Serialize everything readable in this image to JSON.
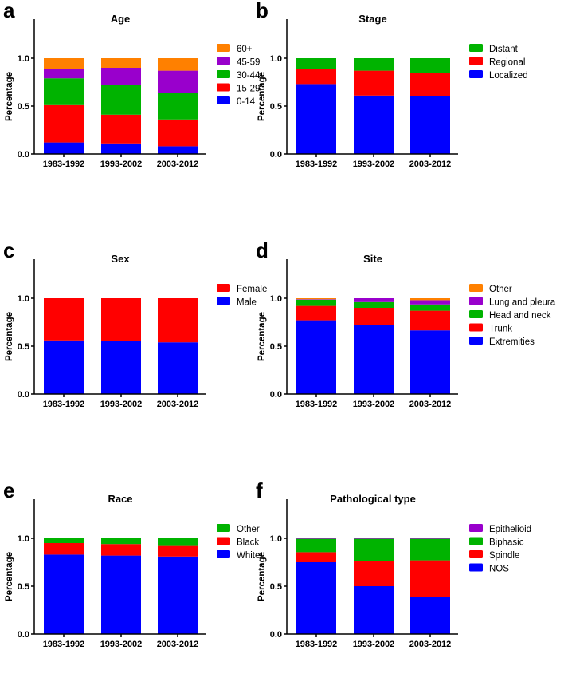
{
  "chart_data": [
    {
      "panel": "a",
      "type": "bar",
      "stacked": true,
      "title": "Age",
      "xlabel": "",
      "ylabel": "Percentage",
      "ylim": [
        0,
        1.2
      ],
      "yticks": [
        "0.0",
        "0.5",
        "1.0"
      ],
      "categories": [
        "1983-1992",
        "1993-2002",
        "2003-2012"
      ],
      "legend_position": "right",
      "series": [
        {
          "name": "0-14",
          "color": "#0000FF",
          "values": [
            0.12,
            0.11,
            0.08
          ]
        },
        {
          "name": "15-29",
          "color": "#FF0000",
          "values": [
            0.39,
            0.3,
            0.28
          ]
        },
        {
          "name": "30-44",
          "color": "#00B300",
          "values": [
            0.28,
            0.31,
            0.28
          ]
        },
        {
          "name": "45-59",
          "color": "#9900CC",
          "values": [
            0.1,
            0.18,
            0.23
          ]
        },
        {
          "name": "60+",
          "color": "#FF8000",
          "values": [
            0.11,
            0.1,
            0.13
          ]
        }
      ]
    },
    {
      "panel": "b",
      "type": "bar",
      "stacked": true,
      "title": "Stage",
      "xlabel": "",
      "ylabel": "Percentage",
      "ylim": [
        0,
        1.2
      ],
      "yticks": [
        "0.0",
        "0.5",
        "1.0"
      ],
      "categories": [
        "1983-1992",
        "1993-2002",
        "2003-2012"
      ],
      "legend_position": "right",
      "series": [
        {
          "name": "Localized",
          "color": "#0000FF",
          "values": [
            0.73,
            0.61,
            0.6
          ]
        },
        {
          "name": "Regional",
          "color": "#FF0000",
          "values": [
            0.16,
            0.26,
            0.25
          ]
        },
        {
          "name": "Distant",
          "color": "#00B300",
          "values": [
            0.11,
            0.13,
            0.15
          ]
        }
      ]
    },
    {
      "panel": "c",
      "type": "bar",
      "stacked": true,
      "title": "Sex",
      "xlabel": "",
      "ylabel": "Percentage",
      "ylim": [
        0,
        1.2
      ],
      "yticks": [
        "0.0",
        "0.5",
        "1.0"
      ],
      "categories": [
        "1983-1992",
        "1993-2002",
        "2003-2012"
      ],
      "legend_position": "right",
      "series": [
        {
          "name": "Male",
          "color": "#0000FF",
          "values": [
            0.56,
            0.55,
            0.54
          ]
        },
        {
          "name": "Female",
          "color": "#FF0000",
          "values": [
            0.44,
            0.45,
            0.46
          ]
        }
      ]
    },
    {
      "panel": "d",
      "type": "bar",
      "stacked": true,
      "title": "Site",
      "xlabel": "",
      "ylabel": "Percentage",
      "ylim": [
        0,
        1.2
      ],
      "yticks": [
        "0.0",
        "0.5",
        "1.0"
      ],
      "categories": [
        "1983-1992",
        "1993-2002",
        "2003-2012"
      ],
      "legend_position": "right",
      "series": [
        {
          "name": "Extremities",
          "color": "#0000FF",
          "values": [
            0.77,
            0.72,
            0.665
          ]
        },
        {
          "name": "Trunk",
          "color": "#FF0000",
          "values": [
            0.15,
            0.18,
            0.205
          ]
        },
        {
          "name": "Head and neck",
          "color": "#00B300",
          "values": [
            0.065,
            0.06,
            0.065
          ]
        },
        {
          "name": "Lung and pleura",
          "color": "#9900CC",
          "values": [
            0.005,
            0.04,
            0.045
          ]
        },
        {
          "name": "Other",
          "color": "#FF8000",
          "values": [
            0.01,
            0.0,
            0.02
          ]
        }
      ]
    },
    {
      "panel": "e",
      "type": "bar",
      "stacked": true,
      "title": "Race",
      "xlabel": "",
      "ylabel": "Percentage",
      "ylim": [
        0,
        1.2
      ],
      "yticks": [
        "0.0",
        "0.5",
        "1.0"
      ],
      "categories": [
        "1983-1992",
        "1993-2002",
        "2003-2012"
      ],
      "legend_position": "right",
      "series": [
        {
          "name": "White",
          "color": "#0000FF",
          "values": [
            0.83,
            0.82,
            0.81
          ]
        },
        {
          "name": "Black",
          "color": "#FF0000",
          "values": [
            0.12,
            0.12,
            0.11
          ]
        },
        {
          "name": "Other",
          "color": "#00B300",
          "values": [
            0.05,
            0.06,
            0.08
          ]
        }
      ]
    },
    {
      "panel": "f",
      "type": "bar",
      "stacked": true,
      "title": "Pathological type",
      "xlabel": "",
      "ylabel": "Percentage",
      "ylim": [
        0,
        1.2
      ],
      "yticks": [
        "0.0",
        "0.5",
        "1.0"
      ],
      "categories": [
        "1983-1992",
        "1993-2002",
        "2003-2012"
      ],
      "legend_position": "right",
      "series": [
        {
          "name": "NOS",
          "color": "#0000FF",
          "values": [
            0.75,
            0.5,
            0.39
          ]
        },
        {
          "name": "Spindle",
          "color": "#FF0000",
          "values": [
            0.105,
            0.26,
            0.38
          ]
        },
        {
          "name": "Biphasic",
          "color": "#00B300",
          "values": [
            0.14,
            0.235,
            0.225
          ]
        },
        {
          "name": "Epithelioid",
          "color": "#9900CC",
          "values": [
            0.005,
            0.005,
            0.005
          ]
        }
      ]
    }
  ]
}
